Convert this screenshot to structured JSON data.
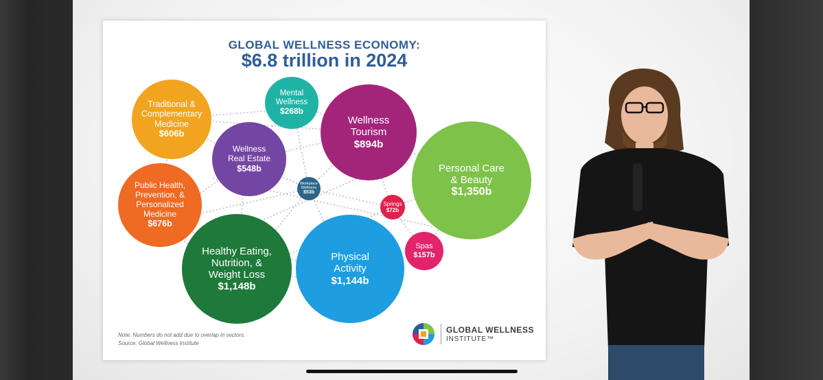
{
  "slide": {
    "title_line1": "GLOBAL WELLNESS ECONOMY:",
    "title_line2": "$6.8 trillion in 2024",
    "note_line1": "Note: Numbers do not add due to overlap in sectors.",
    "note_line2": "Source: Global Wellness Institute",
    "logo_name": "GLOBAL WELLNESS",
    "logo_sub": "INSTITUTE™"
  },
  "bubbles": [
    {
      "id": "traditional",
      "label": "Traditional &\nComplementary\nMedicine",
      "value": "$606b",
      "color": "#f0a41f"
    },
    {
      "id": "mental",
      "label": "Mental\nWellness",
      "value": "$268b",
      "color": "#1fb3a6"
    },
    {
      "id": "tourism",
      "label": "Wellness\nTourism",
      "value": "$894b",
      "color": "#a3257a"
    },
    {
      "id": "realestate",
      "label": "Wellness\nReal Estate",
      "value": "$548b",
      "color": "#7446a3"
    },
    {
      "id": "personalcare",
      "label": "Personal Care\n& Beauty",
      "value": "$1,350b",
      "color": "#7ec24a"
    },
    {
      "id": "workplace",
      "label": "Workplace\nWellness",
      "value": "$53b",
      "color": "#2b6689"
    },
    {
      "id": "publichealth",
      "label": "Public Health,\nPrevention, &\nPersonalized\nMedicine",
      "value": "$676b",
      "color": "#ef6a22"
    },
    {
      "id": "springs",
      "label": "Springs",
      "value": "$72b",
      "color": "#e0214b"
    },
    {
      "id": "spas",
      "label": "Spas",
      "value": "$157b",
      "color": "#e2246a"
    },
    {
      "id": "eating",
      "label": "Healthy Eating,\nNutrition, &\nWeight Loss",
      "value": "$1,148b",
      "color": "#1e7a3a"
    },
    {
      "id": "physical",
      "label": "Physical\nActivity",
      "value": "$1,144b",
      "color": "#1e9ee0"
    }
  ],
  "colors": {
    "title": "#2f5d99",
    "shirt": "#151515",
    "hair": "#5a3a20",
    "skin": "#e9b99c",
    "jeans": "#2e4a6a"
  },
  "icons": {
    "logo": "global-wellness-logo-icon",
    "microphone": "microphone-icon"
  }
}
